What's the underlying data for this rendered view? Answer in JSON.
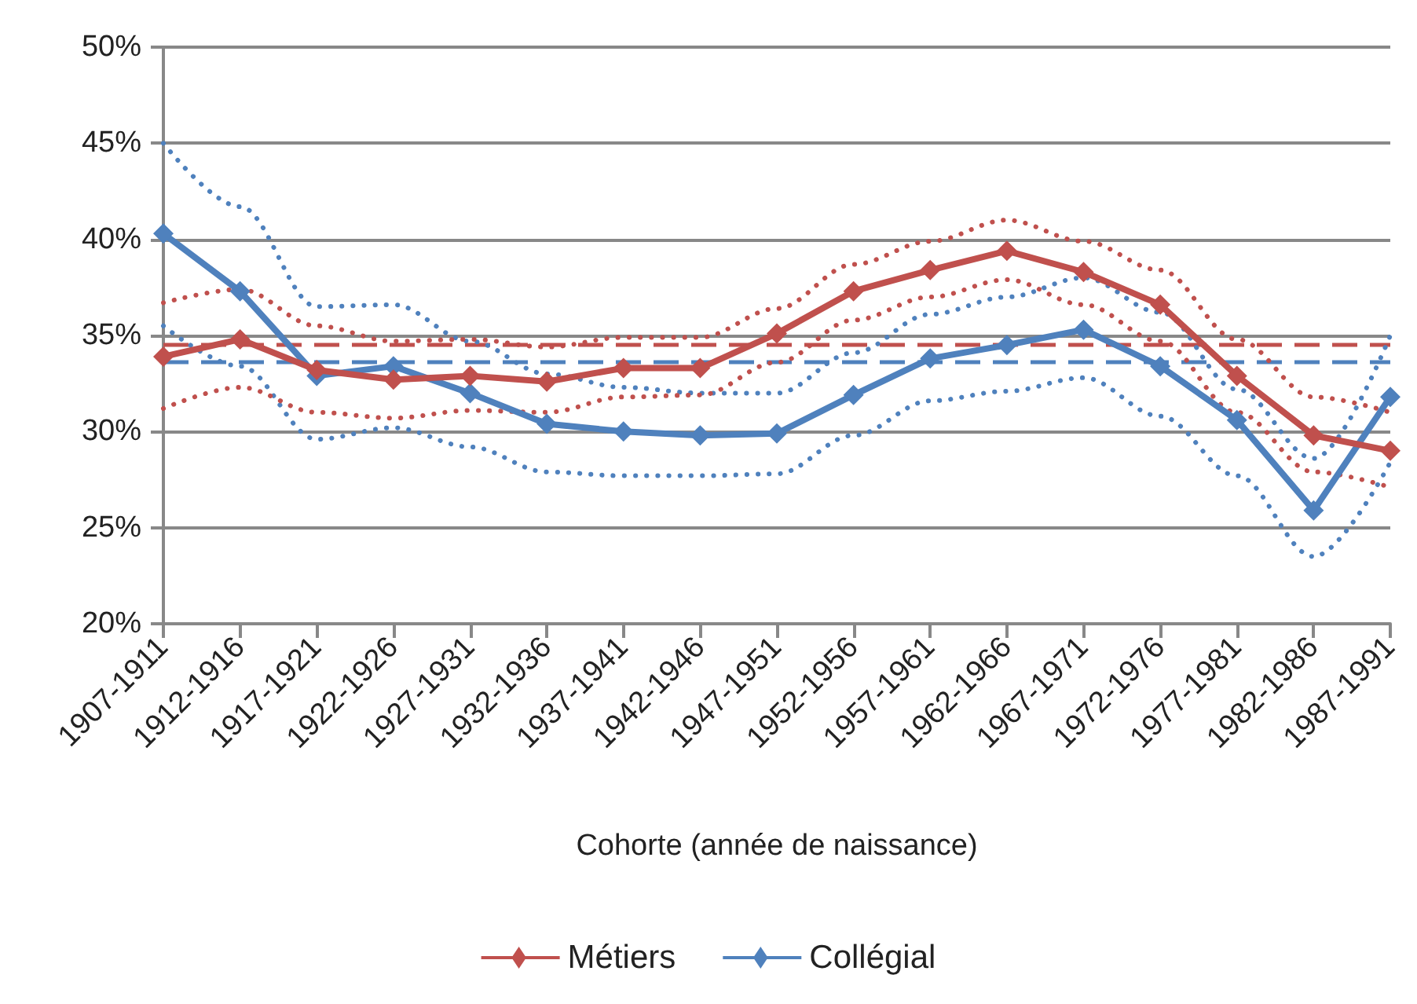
{
  "chart_data": {
    "type": "line",
    "xlabel": "Cohorte (année de naissance)",
    "categories": [
      "1907-1911",
      "1912-1916",
      "1917-1921",
      "1922-1926",
      "1927-1931",
      "1932-1936",
      "1937-1941",
      "1942-1946",
      "1947-1951",
      "1952-1956",
      "1957-1961",
      "1962-1966",
      "1967-1971",
      "1972-1976",
      "1977-1981",
      "1982-1986",
      "1987-1991"
    ],
    "series": [
      {
        "name": "Métiers",
        "color": "#c0504d",
        "values": [
          33.9,
          34.8,
          33.2,
          32.7,
          32.9,
          32.6,
          33.3,
          33.3,
          35.1,
          37.3,
          38.4,
          39.4,
          38.3,
          36.6,
          32.9,
          29.8,
          29.0
        ]
      },
      {
        "name": "Collégial",
        "color": "#4f81bd",
        "values": [
          40.3,
          37.3,
          32.9,
          33.4,
          32.0,
          30.4,
          30.0,
          29.8,
          29.9,
          31.9,
          33.8,
          34.5,
          35.3,
          33.4,
          30.6,
          25.9,
          31.8
        ]
      },
      {
        "color": "#c0504d",
        "line_style": "dotted",
        "marker": "none",
        "values": [
          36.7,
          37.4,
          35.5,
          34.7,
          34.8,
          34.4,
          34.9,
          34.9,
          36.4,
          38.7,
          39.9,
          41.0,
          39.9,
          38.4,
          34.8,
          31.8,
          31.0
        ]
      },
      {
        "color": "#c0504d",
        "line_style": "dotted",
        "marker": "none",
        "values": [
          31.2,
          32.3,
          31.0,
          30.7,
          31.1,
          31.0,
          31.8,
          31.9,
          33.6,
          35.8,
          37.0,
          37.9,
          36.6,
          34.7,
          31.0,
          27.9,
          27.1
        ]
      },
      {
        "color": "#4f81bd",
        "line_style": "dotted",
        "marker": "none",
        "values": [
          45.0,
          41.7,
          36.5,
          36.6,
          34.7,
          33.0,
          32.3,
          32.0,
          32.0,
          34.1,
          36.1,
          37.0,
          38.0,
          36.2,
          32.2,
          28.6,
          35.0
        ]
      },
      {
        "color": "#4f81bd",
        "line_style": "dotted",
        "marker": "none",
        "values": [
          35.5,
          33.4,
          29.6,
          30.2,
          29.2,
          27.9,
          27.7,
          27.7,
          27.8,
          29.8,
          31.6,
          32.1,
          32.8,
          30.8,
          27.7,
          23.5,
          28.4
        ]
      }
    ],
    "ref_lines": [
      {
        "axis": "y",
        "value": 34.5,
        "color": "#c0504d",
        "line_style": "dashed"
      },
      {
        "axis": "y",
        "value": 33.6,
        "color": "#4f81bd",
        "line_style": "dashed"
      }
    ],
    "ylim": [
      20,
      50
    ],
    "yticks": [
      {
        "value": 20,
        "label": "20%"
      },
      {
        "value": 25,
        "label": "25%"
      },
      {
        "value": 30,
        "label": "30%"
      },
      {
        "value": 35,
        "label": "35%"
      },
      {
        "value": 40,
        "label": "40%"
      },
      {
        "value": 45,
        "label": "45%"
      },
      {
        "value": 50,
        "label": "50%"
      }
    ],
    "grid": "y",
    "legend": "bottom",
    "marker": "diamond",
    "line_style": "solid"
  }
}
